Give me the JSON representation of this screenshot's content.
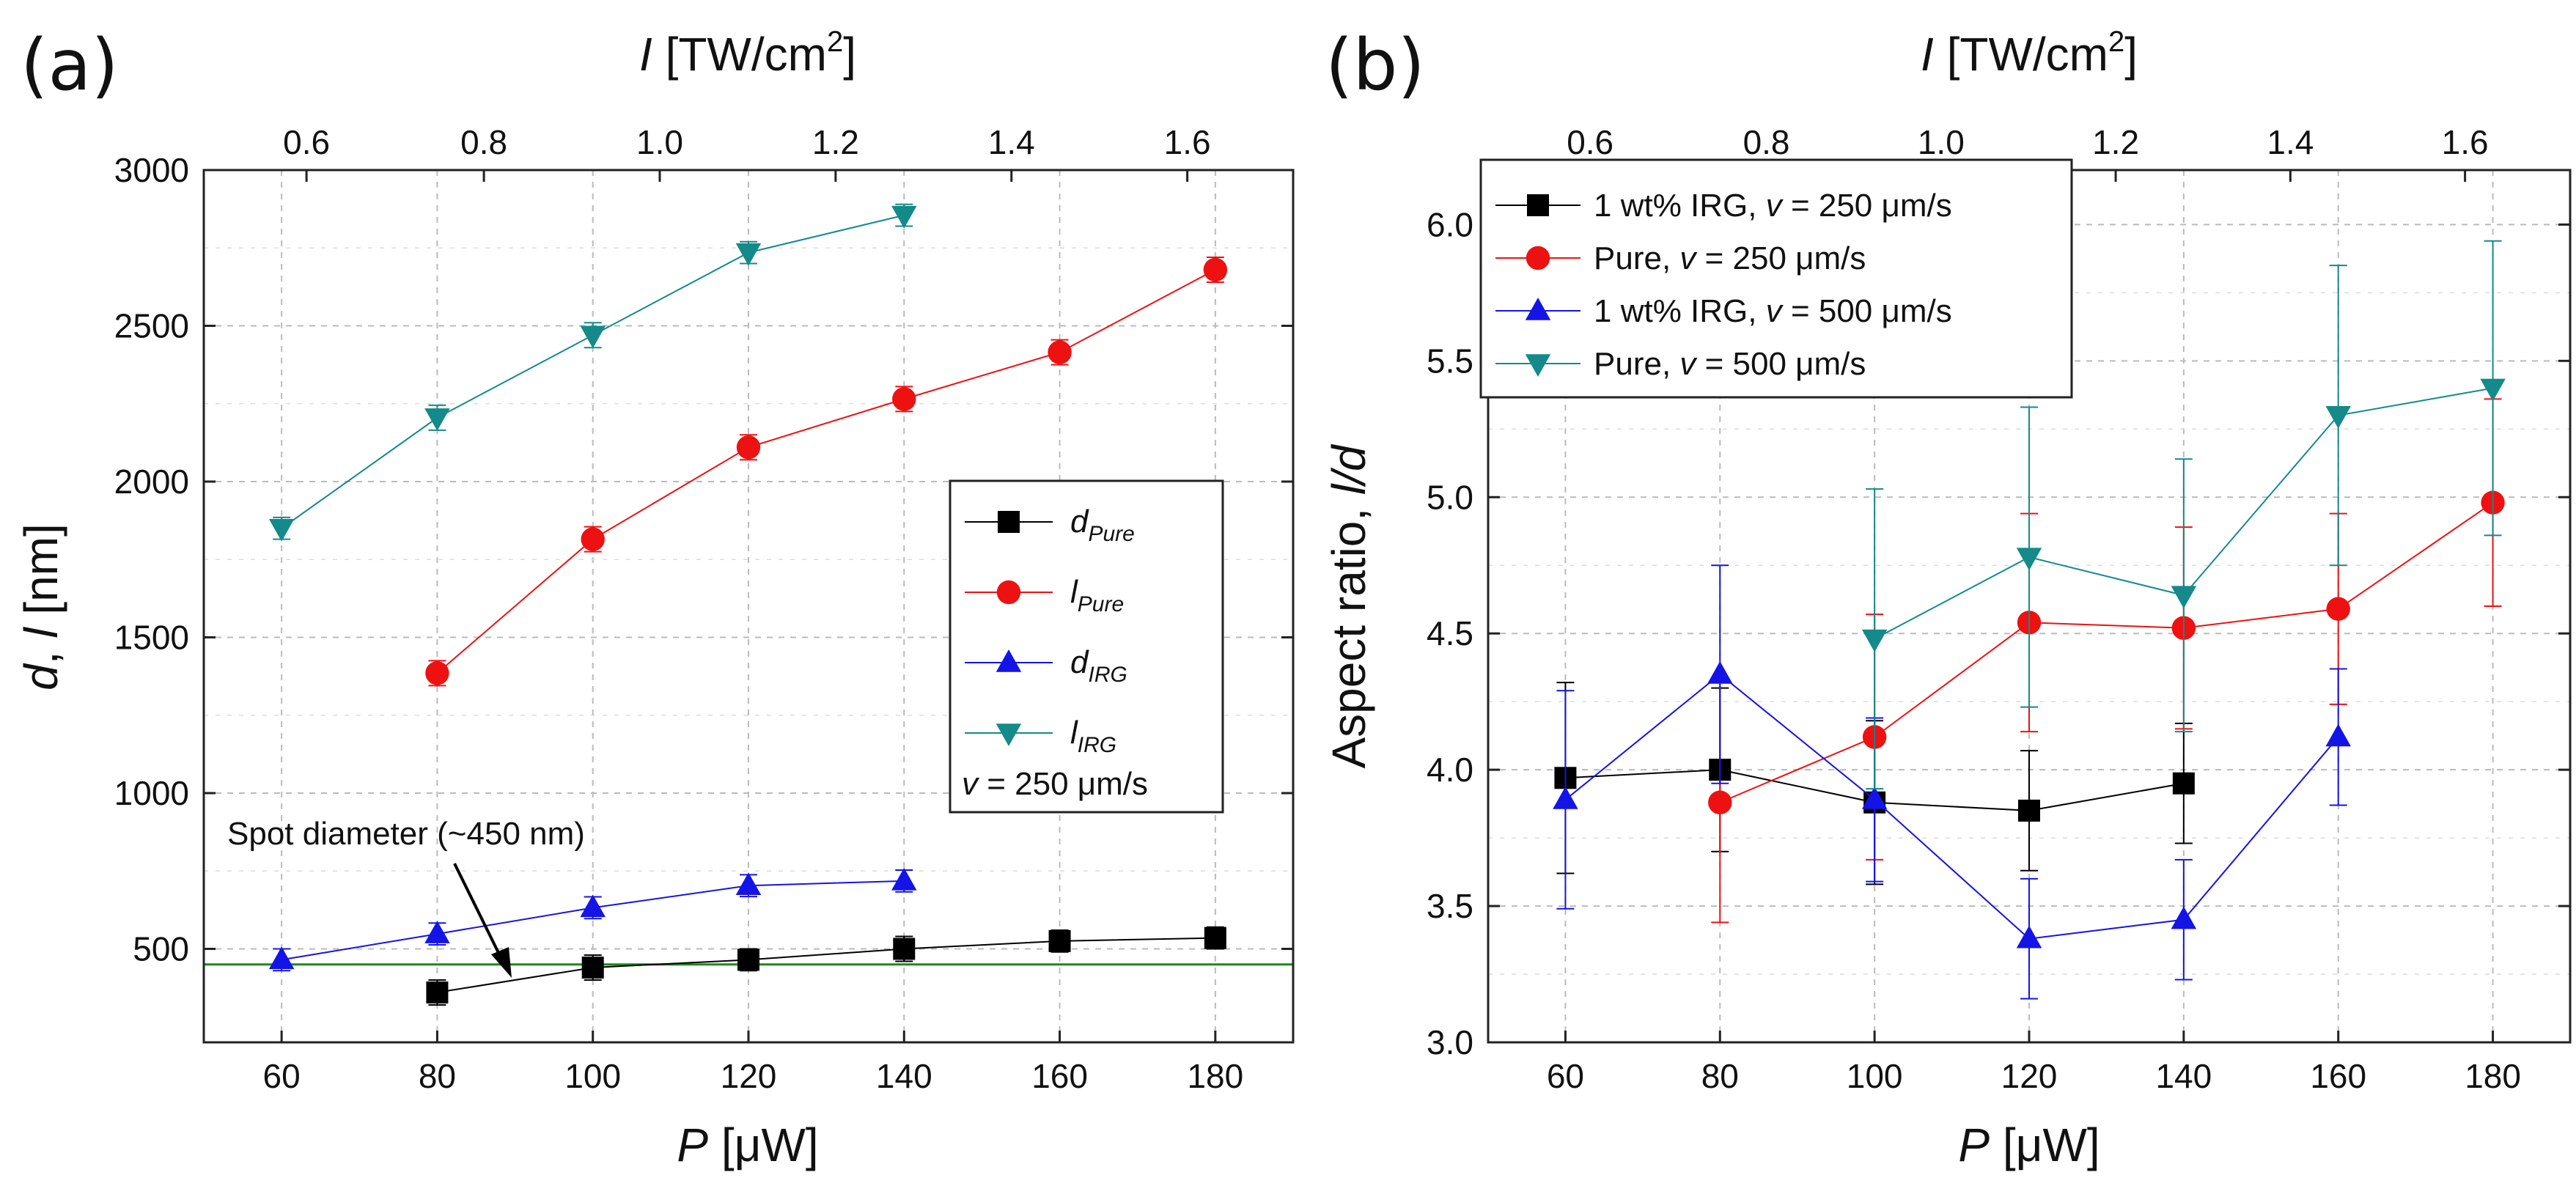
{
  "chart_data": [
    {
      "panel": "(a)",
      "type": "line",
      "xlabel_italic": "P",
      "xlabel_rest": " [μW]",
      "ylabel_sym1": "d",
      "ylabel_sep": ", ",
      "ylabel_sym2": "l",
      "ylabel_rest": " [nm]",
      "top_label_italic": "I",
      "top_label_rest": " [TW/cm",
      "top_label_sup": "2",
      "top_label_end": "]",
      "xlim": [
        50,
        190
      ],
      "ylim": [
        200,
        3000
      ],
      "x_ticks": [
        60,
        80,
        100,
        120,
        140,
        160,
        180
      ],
      "y_ticks": [
        500,
        1000,
        1500,
        2000,
        2500,
        3000
      ],
      "top_ticks": [
        {
          "label": "0.6",
          "at": 63.2
        },
        {
          "label": "0.8",
          "at": 86.0
        },
        {
          "label": "1.0",
          "at": 108.6
        },
        {
          "label": "1.2",
          "at": 131.2
        },
        {
          "label": "1.4",
          "at": 153.8
        },
        {
          "label": "1.6",
          "at": 176.4
        }
      ],
      "grid": true,
      "hline": {
        "y": 450,
        "color": "#1a8a1a"
      },
      "annotation": {
        "text": "Spot diameter (~450 nm)",
        "arrow_to": [
          90,
          455
        ]
      },
      "velocity_note": {
        "italic": "v",
        "text": " = 250 μm/s"
      },
      "legend_position": "right-middle",
      "series": [
        {
          "name": "d",
          "subscript": "Pure",
          "marker": "square",
          "color": "#000000",
          "x": [
            80,
            100,
            120,
            140,
            160,
            180
          ],
          "y": [
            360,
            440,
            465,
            500,
            525,
            535
          ],
          "err": [
            40,
            40,
            35,
            40,
            35,
            35
          ]
        },
        {
          "name": "l",
          "subscript": "Pure",
          "marker": "circle",
          "color": "#ee1111",
          "x": [
            80,
            100,
            120,
            140,
            160,
            180
          ],
          "y": [
            1385,
            1815,
            2110,
            2265,
            2415,
            2680
          ],
          "err": [
            40,
            40,
            40,
            40,
            40,
            40
          ]
        },
        {
          "name": "d",
          "subscript": "IRG",
          "marker": "triangle-up",
          "color": "#1414e6",
          "x": [
            60,
            80,
            100,
            120,
            140
          ],
          "y": [
            465,
            548,
            632,
            703,
            718
          ],
          "err": [
            35,
            35,
            35,
            35,
            35
          ]
        },
        {
          "name": "l",
          "subscript": "IRG",
          "marker": "triangle-down",
          "color": "#148a8a",
          "x": [
            60,
            80,
            100,
            120,
            140
          ],
          "y": [
            1850,
            2205,
            2470,
            2735,
            2855
          ],
          "err": [
            35,
            40,
            40,
            35,
            35
          ]
        }
      ]
    },
    {
      "panel": "(b)",
      "type": "line",
      "xlabel_italic": "P",
      "xlabel_rest": " [μW]",
      "ylabel_text": "Aspect ratio, ",
      "ylabel_sym": "l/d",
      "top_label_italic": "I",
      "top_label_rest": " [TW/cm",
      "top_label_sup": "2",
      "top_label_end": "]",
      "xlim": [
        50,
        190
      ],
      "ylim": [
        3.0,
        6.2
      ],
      "x_ticks": [
        60,
        80,
        100,
        120,
        140,
        160,
        180
      ],
      "y_ticks": [
        3.0,
        3.5,
        4.0,
        4.5,
        5.0,
        5.5,
        6.0
      ],
      "y_tick_labels": [
        "3.0",
        "3.5",
        "4.0",
        "4.5",
        "5.0",
        "5.5",
        "6.0"
      ],
      "top_ticks": [
        {
          "label": "0.6",
          "at": 63.2
        },
        {
          "label": "0.8",
          "at": 86.0
        },
        {
          "label": "1.0",
          "at": 108.6
        },
        {
          "label": "1.2",
          "at": 131.2
        },
        {
          "label": "1.4",
          "at": 153.8
        },
        {
          "label": "1.6",
          "at": 176.4
        }
      ],
      "grid": true,
      "legend_position": "top-left",
      "series": [
        {
          "label_pre": "1 wt% IRG, ",
          "label_v": "v",
          "label_post": " = 250 μm/s",
          "marker": "square",
          "color": "#000000",
          "x": [
            60,
            80,
            100,
            120,
            140
          ],
          "y": [
            3.97,
            4.0,
            3.88,
            3.85,
            3.95
          ],
          "err": [
            0.35,
            0.3,
            0.3,
            0.22,
            0.22
          ]
        },
        {
          "label_pre": "Pure, ",
          "label_v": "v",
          "label_post": " = 250 μm/s",
          "marker": "circle",
          "color": "#ee1111",
          "x": [
            80,
            100,
            120,
            140,
            160,
            180
          ],
          "y": [
            3.88,
            4.12,
            4.54,
            4.52,
            4.59,
            4.98
          ],
          "err": [
            0.44,
            0.45,
            0.4,
            0.37,
            0.35,
            0.38
          ]
        },
        {
          "label_pre": "1 wt% IRG, ",
          "label_v": "v",
          "label_post": " = 500 μm/s",
          "marker": "triangle-up",
          "color": "#1414e6",
          "x": [
            60,
            80,
            100,
            120,
            140,
            160
          ],
          "y": [
            3.89,
            4.35,
            3.89,
            3.38,
            3.45,
            4.12
          ],
          "err": [
            0.4,
            0.4,
            0.3,
            0.22,
            0.22,
            0.25
          ]
        },
        {
          "label_pre": "Pure, ",
          "label_v": "v",
          "label_post": " = 500 μm/s",
          "marker": "triangle-down",
          "color": "#148a8a",
          "x": [
            100,
            120,
            140,
            160,
            180
          ],
          "y": [
            4.48,
            4.78,
            4.64,
            5.3,
            5.4
          ],
          "err": [
            0.55,
            0.55,
            0.5,
            0.55,
            0.54
          ]
        }
      ]
    }
  ]
}
